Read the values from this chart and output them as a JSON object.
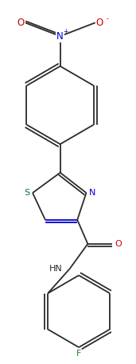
{
  "bg_color": "#ffffff",
  "line_color": "#2b2b2b",
  "atom_colors": {
    "N": "#0000cc",
    "O": "#cc0000",
    "S": "#007070",
    "F": "#208020",
    "C": "#2b2b2b",
    "H": "#2b2b2b"
  },
  "figsize": [
    1.71,
    4.55
  ],
  "dpi": 100
}
